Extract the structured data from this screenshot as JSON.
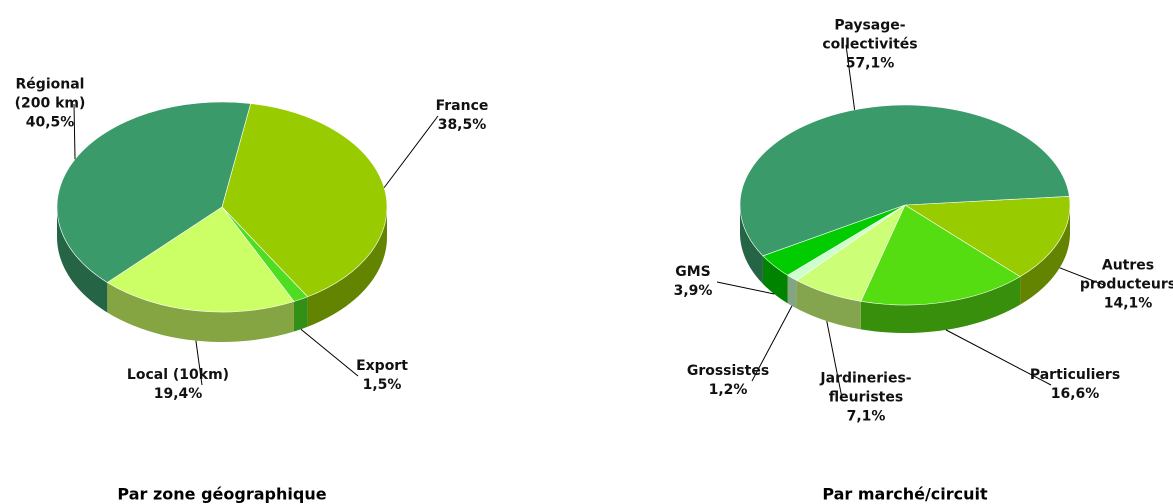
{
  "chart_data": [
    {
      "type": "pie3d",
      "title": "Par zone géographique",
      "categories": [
        "France",
        "Export",
        "Local (10km)",
        "Régional\n(200 km)"
      ],
      "values": [
        38.5,
        1.5,
        19.4,
        40.5
      ],
      "value_labels": [
        "38,5%",
        "1,5%",
        "19,4%",
        "40,5%"
      ],
      "colors": [
        "#99cc00",
        "#4fdd22",
        "#ccff66",
        "#3a9a6a"
      ]
    },
    {
      "type": "pie3d",
      "title": "Par marché/circuit",
      "categories": [
        "Autres\nproducteurs",
        "Particuliers",
        "Jardineries-\nfleuristes",
        "Grossistes",
        "GMS",
        "Paysage-\ncollectivités"
      ],
      "values": [
        14.1,
        16.6,
        7.1,
        1.2,
        3.9,
        57.1
      ],
      "value_labels": [
        "14,1%",
        "16,6%",
        "7,1%",
        "1,2%",
        "3,9%",
        "57,1%"
      ],
      "colors": [
        "#99cc00",
        "#55dd11",
        "#ccff77",
        "#ccffcc",
        "#00cc00",
        "#3a9a6a"
      ]
    }
  ]
}
